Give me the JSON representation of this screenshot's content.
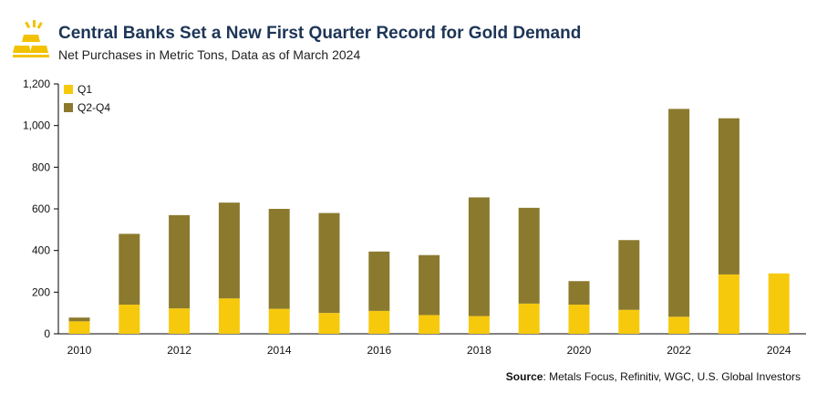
{
  "header": {
    "title": "Central Banks Set a New First Quarter Record for Gold Demand",
    "subtitle": "Net Purchases in Metric Tons, Data as of March 2024"
  },
  "footer": {
    "source_label": "Source",
    "source_text": ": Metals Focus, Refinitiv, WGC, U.S. Global Investors"
  },
  "colors": {
    "q1": "#f7c90c",
    "q2q4": "#8b7a2e",
    "title": "#1d3557"
  },
  "chart_data": {
    "type": "bar",
    "stacked": true,
    "categories": [
      "2010",
      "2011",
      "2012",
      "2013",
      "2014",
      "2015",
      "2016",
      "2017",
      "2018",
      "2019",
      "2020",
      "2021",
      "2022",
      "2023",
      "2024"
    ],
    "x_tick_labels": [
      "2010",
      "",
      "2012",
      "",
      "2014",
      "",
      "2016",
      "",
      "2018",
      "",
      "2020",
      "",
      "2022",
      "",
      "2024"
    ],
    "series": [
      {
        "name": "Q1",
        "values": [
          60,
          140,
          122,
          170,
          120,
          100,
          110,
          90,
          85,
          145,
          140,
          115,
          82,
          285,
          290
        ]
      },
      {
        "name": "Q2-Q4",
        "values": [
          18,
          340,
          448,
          460,
          480,
          480,
          285,
          288,
          570,
          460,
          113,
          335,
          998,
          750,
          0
        ]
      }
    ],
    "ylim": [
      0,
      1200
    ],
    "y_ticks": [
      0,
      200,
      400,
      600,
      800,
      1000,
      1200
    ],
    "y_tick_labels": [
      "0",
      "200",
      "400",
      "600",
      "800",
      "1,000",
      "1,200"
    ],
    "legend_position": "top-left",
    "grid": false
  }
}
